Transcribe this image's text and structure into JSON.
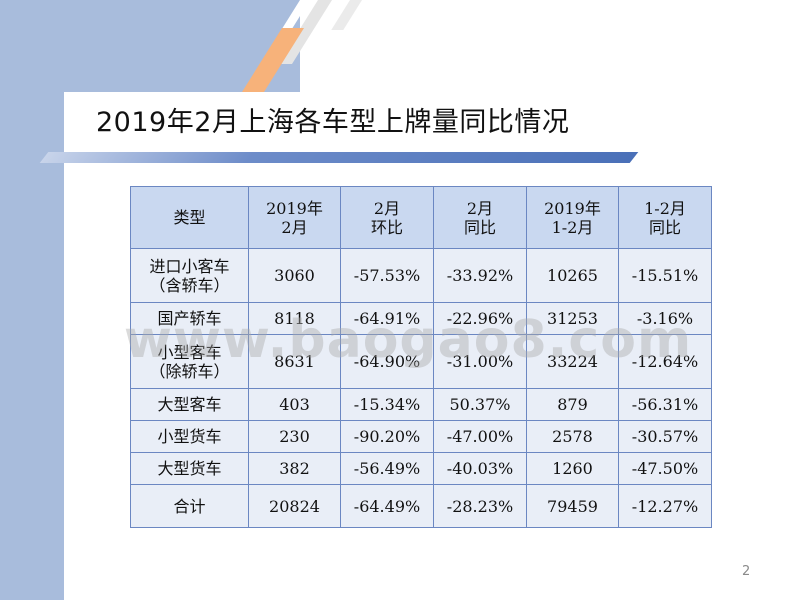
{
  "slide": {
    "title": "2019年2月上海各车型上牌量同比情况",
    "page_number": "2",
    "watermark": "www.baogao8.com"
  },
  "table": {
    "headers": [
      "类型",
      "2019年\n2月",
      "2月\n环比",
      "2月\n同比",
      "2019年\n1-2月",
      "1-2月\n同比"
    ],
    "rows": [
      [
        "进口小客车\n（含轿车）",
        "3060",
        "-57.53%",
        "-33.92%",
        "10265",
        "-15.51%"
      ],
      [
        "国产轿车",
        "8118",
        "-64.91%",
        "-22.96%",
        "31253",
        "-3.16%"
      ],
      [
        "小型客车\n（除轿车）",
        "8631",
        "-64.90%",
        "-31.00%",
        "33224",
        "-12.64%"
      ],
      [
        "大型客车",
        "403",
        "-15.34%",
        "50.37%",
        "879",
        "-56.31%"
      ],
      [
        "小型货车",
        "230",
        "-90.20%",
        "-47.00%",
        "2578",
        "-30.57%"
      ],
      [
        "大型货车",
        "382",
        "-56.49%",
        "-40.03%",
        "1260",
        "-47.50%"
      ],
      [
        "合计",
        "20824",
        "-64.49%",
        "-28.23%",
        "79459",
        "-12.27%"
      ]
    ]
  },
  "colors": {
    "header_fill": "#c9d8f0",
    "cell_fill": "#e9eef7",
    "border": "#6b87c2",
    "side_band": "#a8bcdc",
    "accent_orange": "#f7b27a"
  }
}
